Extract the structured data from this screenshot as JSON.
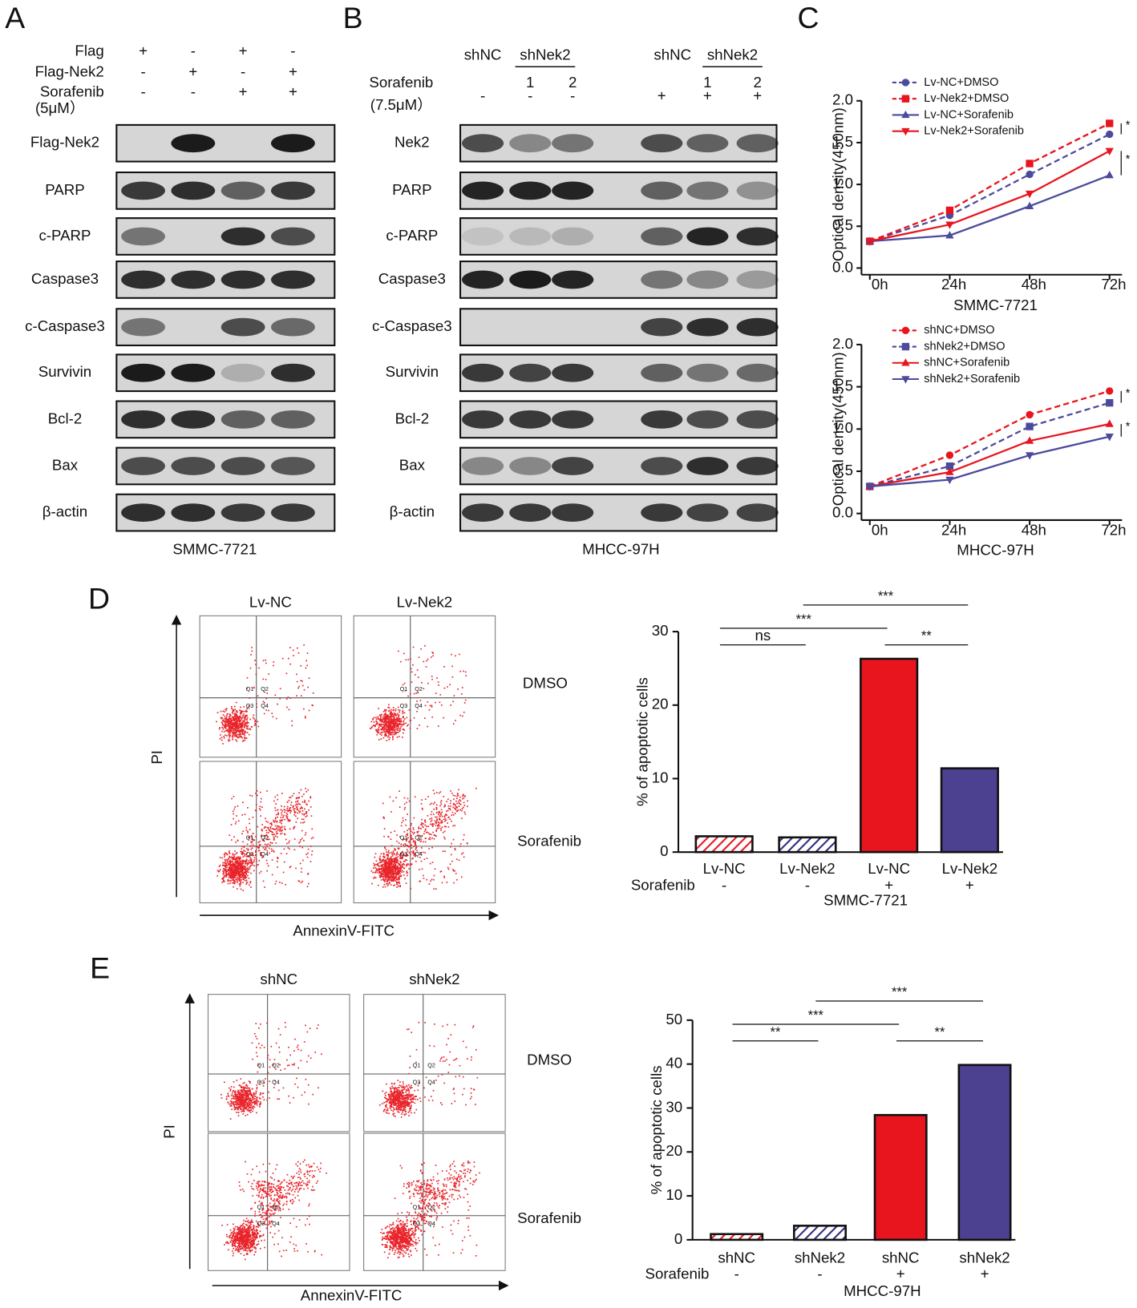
{
  "panel_labels": [
    "A",
    "B",
    "C",
    "D",
    "E"
  ],
  "blots": [
    {
      "conditions": [
        {
          "label": "Flag",
          "values": [
            "+",
            "-",
            "+",
            "-"
          ]
        },
        {
          "label": "Flag-Nek2",
          "values": [
            "-",
            "+",
            "-",
            "+"
          ]
        },
        {
          "label": "Sorafenib",
          "sublabel": "(5μM）",
          "values": [
            "-",
            "-",
            "+",
            "+"
          ]
        }
      ],
      "bands": [
        "Flag-Nek2",
        "PARP",
        "c-PARP",
        "Caspase3",
        "c-Caspase3",
        "Survivin",
        "Bcl-2",
        "Bax",
        "β-actin"
      ],
      "cell_line": "SMMC-7721"
    },
    {
      "groups": [
        "shNC",
        "shNek2",
        "shNC",
        "shNek2"
      ],
      "lane_numbers": [
        null,
        "1",
        "2",
        null,
        "1",
        "2"
      ],
      "conditions": [
        {
          "label": "Sorafenib",
          "sublabel": "(7.5μM）",
          "values": [
            "-",
            "-",
            "-",
            "+",
            "+",
            "+"
          ]
        }
      ],
      "bands": [
        "Nek2",
        "PARP",
        "c-PARP",
        "Caspase3",
        "c-Caspase3",
        "Survivin",
        "Bcl-2",
        "Bax",
        "β-actin"
      ],
      "cell_line": "MHCC-97H"
    }
  ],
  "flow": [
    {
      "columns": [
        "Lv-NC",
        "Lv-Nek2"
      ],
      "rows": [
        "DMSO",
        "Sorafenib"
      ],
      "y_label": "PI",
      "x_label": "AnnexinV-FITC",
      "quadrants": [
        "Q1",
        "Q2",
        "Q3",
        "Q4"
      ]
    },
    {
      "columns": [
        "shNC",
        "shNek2"
      ],
      "rows": [
        "DMSO",
        "Sorafenib"
      ],
      "y_label": "PI",
      "x_label": "AnnexinV-FITC",
      "quadrants": [
        "Q1",
        "Q2",
        "Q3",
        "Q4"
      ]
    }
  ],
  "chart_data": [
    {
      "type": "line",
      "xlabel": "SMMC-7721",
      "ylabel": "Optical density(450nm)",
      "categories": [
        "0h",
        "24h",
        "48h",
        "72h"
      ],
      "ylim": [
        0,
        2
      ],
      "yticks": [
        {
          "value": 0,
          "label": "0.0"
        },
        0.5,
        {
          "value": 1,
          "label": "1.0"
        },
        1.5,
        {
          "value": 2,
          "label": "2.0"
        }
      ],
      "series": [
        {
          "name": "Lv-NC+DMSO",
          "color": "#4b4a9c",
          "marker": "circle",
          "dashed": true,
          "values": [
            0.32,
            0.63,
            1.12,
            1.6
          ]
        },
        {
          "name": "Lv-Nek2+DMSO",
          "color": "#e8141e",
          "marker": "square",
          "dashed": true,
          "values": [
            0.32,
            0.69,
            1.25,
            1.73
          ]
        },
        {
          "name": "Lv-NC+Sorafenib",
          "color": "#4b4a9c",
          "marker": "triangle",
          "dashed": false,
          "values": [
            0.32,
            0.39,
            0.74,
            1.11
          ]
        },
        {
          "name": "Lv-Nek2+Sorafenib",
          "color": "#e8141e",
          "marker": "triangle-down",
          "dashed": false,
          "values": [
            0.32,
            0.52,
            0.89,
            1.4
          ]
        }
      ],
      "annotations": [
        {
          "label": "*",
          "series": [
            1,
            0
          ]
        },
        {
          "label": "*",
          "series": [
            3,
            2
          ]
        }
      ]
    },
    {
      "type": "line",
      "xlabel": "MHCC-97H",
      "ylabel": "Optical density(450nm)",
      "categories": [
        "0h",
        "24h",
        "48h",
        "72h"
      ],
      "ylim": [
        0,
        2
      ],
      "yticks": [
        {
          "value": 0,
          "label": "0.0"
        },
        0.5,
        {
          "value": 1,
          "label": "1.0"
        },
        1.5,
        {
          "value": 2,
          "label": "2.0"
        }
      ],
      "series": [
        {
          "name": "shNC+DMSO",
          "color": "#e8141e",
          "marker": "circle",
          "dashed": true,
          "values": [
            0.32,
            0.69,
            1.17,
            1.45
          ]
        },
        {
          "name": "shNek2+DMSO",
          "color": "#4b4a9c",
          "marker": "square",
          "dashed": true,
          "values": [
            0.32,
            0.56,
            1.03,
            1.31
          ]
        },
        {
          "name": "shNC+Sorafenib",
          "color": "#e8141e",
          "marker": "triangle",
          "dashed": false,
          "values": [
            0.32,
            0.49,
            0.86,
            1.06
          ]
        },
        {
          "name": "shNek2+Sorafenib",
          "color": "#4b4a9c",
          "marker": "triangle-down",
          "dashed": false,
          "values": [
            0.32,
            0.4,
            0.69,
            0.91
          ]
        }
      ],
      "annotations": [
        {
          "label": "*",
          "series": [
            0,
            1
          ]
        },
        {
          "label": "*",
          "series": [
            2,
            3
          ]
        }
      ]
    },
    {
      "type": "bar",
      "xlabel": "SMMC-7721",
      "ylabel": "% of apoptotic cells",
      "categories": [
        "Lv-NC",
        "Lv-Nek2",
        "Lv-NC",
        "Lv-Nek2"
      ],
      "values": [
        2.15,
        2.0,
        26.3,
        11.4
      ],
      "colors": [
        "#e8141e",
        "#2e2a7a",
        "#e8141e",
        "#4b4190"
      ],
      "hatched": [
        true,
        true,
        false,
        false
      ],
      "row_label": "Sorafenib",
      "row_values": [
        "-",
        "-",
        "+",
        "+"
      ],
      "ylim": [
        0,
        30
      ],
      "yticks": [
        0,
        10,
        20,
        30
      ],
      "significance": [
        {
          "from": 0,
          "to": 1,
          "label": "ns"
        },
        {
          "from": 0,
          "to": 2,
          "label": "***"
        },
        {
          "from": 2,
          "to": 3,
          "label": "**"
        },
        {
          "from": 1,
          "to": 3,
          "label": "***"
        }
      ]
    },
    {
      "type": "bar",
      "xlabel": "MHCC-97H",
      "ylabel": "% of apoptotic cells",
      "categories": [
        "shNC",
        "shNek2",
        "shNC",
        "shNek2"
      ],
      "values": [
        1.3,
        3.2,
        28.4,
        39.8
      ],
      "colors": [
        "#e8141e",
        "#2e2a7a",
        "#e8141e",
        "#4b4190"
      ],
      "hatched": [
        true,
        true,
        false,
        false
      ],
      "row_label": "Sorafenib",
      "row_values": [
        "-",
        "-",
        "+",
        "+"
      ],
      "ylim": [
        0,
        50
      ],
      "yticks": [
        0,
        10,
        20,
        30,
        40,
        50
      ],
      "significance": [
        {
          "from": 0,
          "to": 1,
          "label": "**"
        },
        {
          "from": 0,
          "to": 2,
          "label": "***"
        },
        {
          "from": 2,
          "to": 3,
          "label": "**"
        },
        {
          "from": 1,
          "to": 3,
          "label": "***"
        }
      ]
    }
  ]
}
